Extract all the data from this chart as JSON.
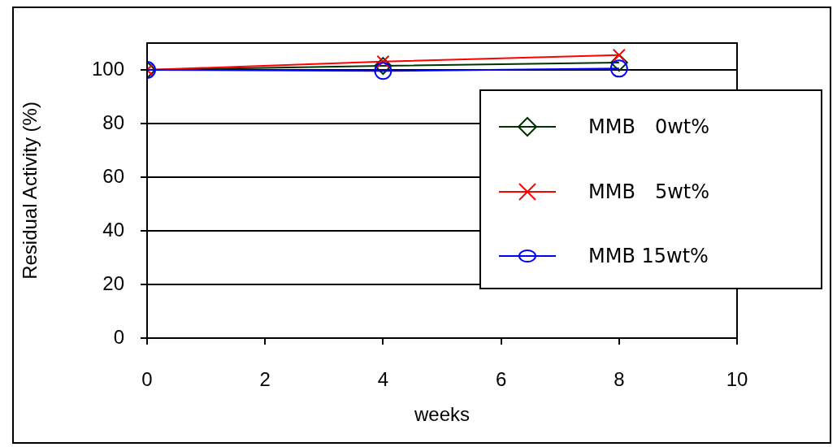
{
  "chart_data": {
    "type": "line",
    "xlabel": "weeks",
    "ylabel": "Residual Activity (%)",
    "x": [
      0,
      4,
      8
    ],
    "series": [
      {
        "name": "MMB　0wt%",
        "color": "#003300",
        "marker": "diamond",
        "values": [
          100,
          101.5,
          102.7
        ]
      },
      {
        "name": "MMB　5wt%",
        "color": "#ff0000",
        "marker": "cross",
        "values": [
          100,
          103.1,
          105.5
        ]
      },
      {
        "name": "MMB 15wt%",
        "color": "#0000ff",
        "marker": "circle",
        "values": [
          100,
          99.6,
          100.5
        ]
      }
    ],
    "xlim": [
      0,
      10
    ],
    "xticks": [
      0,
      2,
      4,
      6,
      8,
      10
    ],
    "ylim": [
      0,
      110
    ],
    "yticks": [
      0,
      20,
      40,
      60,
      80,
      100
    ],
    "grid": "y",
    "legend": "right",
    "line_style": "solid"
  }
}
